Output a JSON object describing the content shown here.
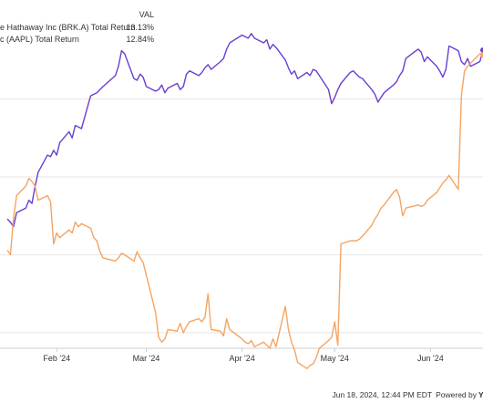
{
  "chart_data": {
    "type": "line",
    "legend": {
      "header": "VAL",
      "placement": "top-left",
      "entries": [
        {
          "label": "e Hathaway Inc (BRK.A) Total Return",
          "value": "13.13%",
          "color": "#6a3fd0"
        },
        {
          "label": "c (AAPL) Total Return",
          "value": "12.84%",
          "color": "#f5a462"
        }
      ]
    },
    "x_ticks": [
      "Feb '24",
      "Mar '24",
      "Apr '24",
      "May '24",
      "Jun '24"
    ],
    "x_domain": [
      "2024-01-16",
      "2024-06-18"
    ],
    "y_range": [
      -6,
      16
    ],
    "y_gridlines": [
      -5,
      0,
      5,
      10
    ],
    "grid": true,
    "series": [
      {
        "name": "e Hathaway Inc (BRK.A) Total Return",
        "color": "#6a3fd0",
        "points": [
          [
            "2024-01-16",
            2.3
          ],
          [
            "2024-01-17",
            2.1
          ],
          [
            "2024-01-18",
            1.8
          ],
          [
            "2024-01-19",
            2.7
          ],
          [
            "2024-01-22",
            3.0
          ],
          [
            "2024-01-23",
            3.5
          ],
          [
            "2024-01-24",
            3.3
          ],
          [
            "2024-01-25",
            4.4
          ],
          [
            "2024-01-26",
            5.3
          ],
          [
            "2024-01-29",
            6.4
          ],
          [
            "2024-01-30",
            6.3
          ],
          [
            "2024-01-31",
            6.7
          ],
          [
            "2024-02-01",
            6.4
          ],
          [
            "2024-02-02",
            7.2
          ],
          [
            "2024-02-05",
            7.9
          ],
          [
            "2024-02-06",
            7.5
          ],
          [
            "2024-02-07",
            8.3
          ],
          [
            "2024-02-08",
            8.2
          ],
          [
            "2024-02-09",
            8.1
          ],
          [
            "2024-02-12",
            10.2
          ],
          [
            "2024-02-13",
            10.3
          ],
          [
            "2024-02-14",
            10.4
          ],
          [
            "2024-02-15",
            10.6
          ],
          [
            "2024-02-16",
            10.8
          ],
          [
            "2024-02-20",
            11.5
          ],
          [
            "2024-02-21",
            12.1
          ],
          [
            "2024-02-22",
            13.1
          ],
          [
            "2024-02-23",
            12.9
          ],
          [
            "2024-02-26",
            11.3
          ],
          [
            "2024-02-27",
            11.2
          ],
          [
            "2024-02-28",
            11.6
          ],
          [
            "2024-02-29",
            11.4
          ],
          [
            "2024-03-01",
            10.8
          ],
          [
            "2024-03-04",
            10.5
          ],
          [
            "2024-03-05",
            10.6
          ],
          [
            "2024-03-06",
            10.9
          ],
          [
            "2024-03-07",
            10.4
          ],
          [
            "2024-03-08",
            10.7
          ],
          [
            "2024-03-11",
            11.0
          ],
          [
            "2024-03-12",
            10.6
          ],
          [
            "2024-03-13",
            10.8
          ],
          [
            "2024-03-14",
            11.6
          ],
          [
            "2024-03-15",
            11.8
          ],
          [
            "2024-03-18",
            11.5
          ],
          [
            "2024-03-19",
            11.7
          ],
          [
            "2024-03-20",
            12.0
          ],
          [
            "2024-03-21",
            12.2
          ],
          [
            "2024-03-22",
            11.9
          ],
          [
            "2024-03-25",
            12.4
          ],
          [
            "2024-03-26",
            12.6
          ],
          [
            "2024-03-27",
            13.2
          ],
          [
            "2024-03-28",
            13.6
          ],
          [
            "2024-04-01",
            14.1
          ],
          [
            "2024-04-02",
            14.0
          ],
          [
            "2024-04-03",
            13.9
          ],
          [
            "2024-04-04",
            14.2
          ],
          [
            "2024-04-05",
            13.9
          ],
          [
            "2024-04-08",
            13.6
          ],
          [
            "2024-04-09",
            13.8
          ],
          [
            "2024-04-10",
            13.2
          ],
          [
            "2024-04-11",
            13.5
          ],
          [
            "2024-04-12",
            13.3
          ],
          [
            "2024-04-15",
            12.5
          ],
          [
            "2024-04-16",
            12.0
          ],
          [
            "2024-04-17",
            11.6
          ],
          [
            "2024-04-18",
            11.8
          ],
          [
            "2024-04-19",
            11.3
          ],
          [
            "2024-04-22",
            11.7
          ],
          [
            "2024-04-23",
            11.5
          ],
          [
            "2024-04-24",
            11.9
          ],
          [
            "2024-04-25",
            11.8
          ],
          [
            "2024-04-26",
            11.5
          ],
          [
            "2024-04-29",
            10.6
          ],
          [
            "2024-04-30",
            9.7
          ],
          [
            "2024-05-01",
            10.1
          ],
          [
            "2024-05-02",
            10.6
          ],
          [
            "2024-05-03",
            11.0
          ],
          [
            "2024-05-06",
            11.7
          ],
          [
            "2024-05-07",
            11.8
          ],
          [
            "2024-05-08",
            11.6
          ],
          [
            "2024-05-09",
            11.4
          ],
          [
            "2024-05-10",
            11.3
          ],
          [
            "2024-05-13",
            10.6
          ],
          [
            "2024-05-14",
            10.3
          ],
          [
            "2024-05-15",
            9.8
          ],
          [
            "2024-05-16",
            10.1
          ],
          [
            "2024-05-17",
            10.4
          ],
          [
            "2024-05-20",
            10.9
          ],
          [
            "2024-05-21",
            11.1
          ],
          [
            "2024-05-22",
            11.5
          ],
          [
            "2024-05-23",
            11.8
          ],
          [
            "2024-05-24",
            12.6
          ],
          [
            "2024-05-28",
            13.2
          ],
          [
            "2024-05-29",
            13.0
          ],
          [
            "2024-05-30",
            12.4
          ],
          [
            "2024-05-31",
            12.7
          ],
          [
            "2024-06-03",
            12.1
          ],
          [
            "2024-06-04",
            11.8
          ],
          [
            "2024-06-05",
            11.4
          ],
          [
            "2024-06-06",
            11.9
          ],
          [
            "2024-06-07",
            13.4
          ],
          [
            "2024-06-10",
            13.1
          ],
          [
            "2024-06-11",
            12.4
          ],
          [
            "2024-06-12",
            12.2
          ],
          [
            "2024-06-13",
            12.6
          ],
          [
            "2024-06-14",
            12.1
          ],
          [
            "2024-06-17",
            12.4
          ],
          [
            "2024-06-18",
            13.13
          ]
        ]
      },
      {
        "name": "c (AAPL) Total Return",
        "color": "#f5a462",
        "points": [
          [
            "2024-01-16",
            0.3
          ],
          [
            "2024-01-17",
            0.0
          ],
          [
            "2024-01-18",
            2.3
          ],
          [
            "2024-01-19",
            3.8
          ],
          [
            "2024-01-22",
            4.4
          ],
          [
            "2024-01-23",
            4.9
          ],
          [
            "2024-01-24",
            4.7
          ],
          [
            "2024-01-25",
            4.4
          ],
          [
            "2024-01-26",
            3.5
          ],
          [
            "2024-01-29",
            3.8
          ],
          [
            "2024-01-30",
            3.4
          ],
          [
            "2024-01-31",
            0.7
          ],
          [
            "2024-02-01",
            1.4
          ],
          [
            "2024-02-02",
            1.1
          ],
          [
            "2024-02-05",
            1.6
          ],
          [
            "2024-02-06",
            1.4
          ],
          [
            "2024-02-07",
            2.1
          ],
          [
            "2024-02-08",
            1.8
          ],
          [
            "2024-02-09",
            2.0
          ],
          [
            "2024-02-12",
            1.7
          ],
          [
            "2024-02-13",
            1.1
          ],
          [
            "2024-02-14",
            0.9
          ],
          [
            "2024-02-15",
            0.2
          ],
          [
            "2024-02-16",
            -0.2
          ],
          [
            "2024-02-20",
            -0.4
          ],
          [
            "2024-02-21",
            -0.2
          ],
          [
            "2024-02-22",
            0.1
          ],
          [
            "2024-02-23",
            0.0
          ],
          [
            "2024-02-26",
            -0.4
          ],
          [
            "2024-02-27",
            0.2
          ],
          [
            "2024-02-28",
            -0.2
          ],
          [
            "2024-02-29",
            -0.5
          ],
          [
            "2024-03-01",
            -1.3
          ],
          [
            "2024-03-04",
            -3.7
          ],
          [
            "2024-03-05",
            -5.3
          ],
          [
            "2024-03-06",
            -5.6
          ],
          [
            "2024-03-07",
            -5.4
          ],
          [
            "2024-03-08",
            -4.8
          ],
          [
            "2024-03-11",
            -4.9
          ],
          [
            "2024-03-12",
            -4.4
          ],
          [
            "2024-03-13",
            -5.0
          ],
          [
            "2024-03-14",
            -4.6
          ],
          [
            "2024-03-15",
            -4.3
          ],
          [
            "2024-03-18",
            -4.1
          ],
          [
            "2024-03-19",
            -4.3
          ],
          [
            "2024-03-20",
            -4.0
          ],
          [
            "2024-03-21",
            -2.5
          ],
          [
            "2024-03-22",
            -4.8
          ],
          [
            "2024-03-25",
            -4.9
          ],
          [
            "2024-03-26",
            -5.2
          ],
          [
            "2024-03-27",
            -4.1
          ],
          [
            "2024-03-28",
            -4.8
          ],
          [
            "2024-04-01",
            -5.4
          ],
          [
            "2024-04-02",
            -5.6
          ],
          [
            "2024-04-03",
            -5.7
          ],
          [
            "2024-04-04",
            -5.5
          ],
          [
            "2024-04-05",
            -5.9
          ],
          [
            "2024-04-08",
            -5.6
          ],
          [
            "2024-04-09",
            -5.8
          ],
          [
            "2024-04-10",
            -6.0
          ],
          [
            "2024-04-11",
            -5.4
          ],
          [
            "2024-04-12",
            -5.9
          ],
          [
            "2024-04-15",
            -3.3
          ],
          [
            "2024-04-16",
            -4.8
          ],
          [
            "2024-04-17",
            -5.6
          ],
          [
            "2024-04-18",
            -6.1
          ],
          [
            "2024-04-19",
            -6.9
          ],
          [
            "2024-04-22",
            -7.3
          ],
          [
            "2024-04-23",
            -7.1
          ],
          [
            "2024-04-24",
            -7.0
          ],
          [
            "2024-04-25",
            -6.6
          ],
          [
            "2024-04-26",
            -6.0
          ],
          [
            "2024-04-29",
            -5.5
          ],
          [
            "2024-04-30",
            -5.3
          ],
          [
            "2024-05-01",
            -4.3
          ],
          [
            "2024-05-02",
            -5.8
          ],
          [
            "2024-05-03",
            0.7
          ],
          [
            "2024-05-06",
            0.9
          ],
          [
            "2024-05-07",
            0.9
          ],
          [
            "2024-05-08",
            0.9
          ],
          [
            "2024-05-09",
            1.0
          ],
          [
            "2024-05-10",
            1.2
          ],
          [
            "2024-05-13",
            1.9
          ],
          [
            "2024-05-14",
            2.3
          ],
          [
            "2024-05-15",
            2.6
          ],
          [
            "2024-05-16",
            3.0
          ],
          [
            "2024-05-17",
            3.2
          ],
          [
            "2024-05-20",
            4.0
          ],
          [
            "2024-05-21",
            4.2
          ],
          [
            "2024-05-22",
            3.7
          ],
          [
            "2024-05-23",
            2.5
          ],
          [
            "2024-05-24",
            3.0
          ],
          [
            "2024-05-28",
            3.2
          ],
          [
            "2024-05-29",
            3.1
          ],
          [
            "2024-05-30",
            3.2
          ],
          [
            "2024-05-31",
            3.5
          ],
          [
            "2024-06-03",
            4.0
          ],
          [
            "2024-06-04",
            4.3
          ],
          [
            "2024-06-05",
            4.6
          ],
          [
            "2024-06-06",
            4.8
          ],
          [
            "2024-06-07",
            5.1
          ],
          [
            "2024-06-10",
            4.2
          ],
          [
            "2024-06-11",
            10.2
          ],
          [
            "2024-06-12",
            11.8
          ],
          [
            "2024-06-13",
            12.1
          ],
          [
            "2024-06-14",
            12.3
          ],
          [
            "2024-06-17",
            12.9
          ],
          [
            "2024-06-18",
            12.84
          ]
        ]
      }
    ]
  },
  "footer": {
    "timestamp": "Jun 18, 2024, 12:44 PM EDT",
    "powered_by": "Powered by",
    "brand_glyph": "Y",
    "brand_color": "#00a0dc"
  }
}
